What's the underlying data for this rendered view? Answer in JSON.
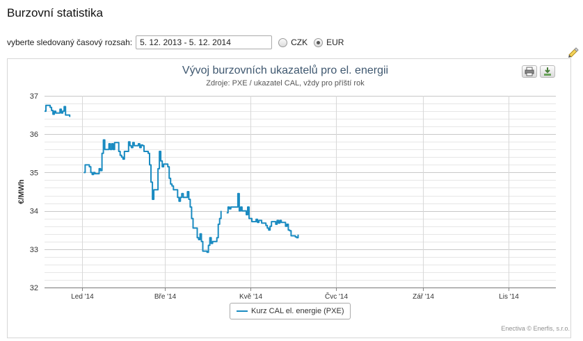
{
  "page": {
    "title": "Burzovní statistika"
  },
  "controls": {
    "range_label": "vyberte sledovaný časový rozsah:",
    "range_value": "5. 12. 2013 - 5. 12. 2014",
    "currency_options": [
      {
        "label": "CZK",
        "checked": false
      },
      {
        "label": "EUR",
        "checked": true
      }
    ]
  },
  "icons": {
    "side": "highlighter-icon",
    "print": "printer-icon",
    "export": "download-icon"
  },
  "colors": {
    "series": "#1a8bc1",
    "title": "#3e576f",
    "grid": "#d8d8d8"
  },
  "chart_data": {
    "type": "line",
    "title": "Vývoj burzovních ukazatelů pro el. energii",
    "subtitle": "Zdroje: PXE / ukazatel CAL, vždy pro příští rok",
    "ylabel": "€/MWh",
    "xlabel": "",
    "ylim": [
      32,
      37
    ],
    "yticks": [
      32,
      33,
      34,
      35,
      36,
      37
    ],
    "xlim": [
      "2013-12-05",
      "2014-12-05"
    ],
    "xticks": [
      {
        "date": "2014-01-01",
        "label": "Led '14"
      },
      {
        "date": "2014-03-01",
        "label": "Bře '14"
      },
      {
        "date": "2014-05-01",
        "label": "Kvě '14"
      },
      {
        "date": "2014-07-01",
        "label": "Čvc '14"
      },
      {
        "date": "2014-09-01",
        "label": "Zář '14"
      },
      {
        "date": "2014-11-01",
        "label": "Lis '14"
      }
    ],
    "grid": true,
    "legend_position": "bottom-center",
    "credits": "Enectiva © Enerfis, s.r.o.",
    "series": [
      {
        "name": "Kurz CAL el. energie (PXE)",
        "segments": [
          [
            [
              "2013-12-05",
              36.6
            ],
            [
              "2013-12-06",
              36.75
            ],
            [
              "2013-12-09",
              36.7
            ],
            [
              "2013-12-10",
              36.62
            ],
            [
              "2013-12-11",
              36.52
            ],
            [
              "2013-12-12",
              36.6
            ],
            [
              "2013-12-13",
              36.55
            ],
            [
              "2013-12-16",
              36.65
            ],
            [
              "2013-12-17",
              36.55
            ],
            [
              "2013-12-18",
              36.6
            ],
            [
              "2013-12-19",
              36.72
            ],
            [
              "2013-12-20",
              36.5
            ],
            [
              "2013-12-23",
              36.45
            ]
          ],
          [
            [
              "2014-01-02",
              35.0
            ],
            [
              "2014-01-03",
              35.2
            ],
            [
              "2014-01-06",
              35.15
            ],
            [
              "2014-01-07",
              35.0
            ],
            [
              "2014-01-08",
              34.95
            ],
            [
              "2014-01-09",
              35.0
            ],
            [
              "2014-01-10",
              34.97
            ],
            [
              "2014-01-13",
              35.1
            ],
            [
              "2014-01-14",
              35.05
            ],
            [
              "2014-01-15",
              35.5
            ],
            [
              "2014-01-16",
              35.85
            ],
            [
              "2014-01-17",
              35.6
            ],
            [
              "2014-01-20",
              35.75
            ],
            [
              "2014-01-21",
              35.6
            ],
            [
              "2014-01-22",
              35.75
            ],
            [
              "2014-01-23",
              35.6
            ],
            [
              "2014-01-24",
              35.78
            ],
            [
              "2014-01-27",
              35.55
            ],
            [
              "2014-01-28",
              35.45
            ],
            [
              "2014-01-29",
              35.4
            ],
            [
              "2014-01-30",
              35.35
            ],
            [
              "2014-01-31",
              35.55
            ],
            [
              "2014-02-03",
              35.8
            ],
            [
              "2014-02-04",
              35.7
            ],
            [
              "2014-02-05",
              35.65
            ],
            [
              "2014-02-06",
              35.78
            ],
            [
              "2014-02-07",
              35.7
            ],
            [
              "2014-02-10",
              35.75
            ],
            [
              "2014-02-11",
              35.65
            ],
            [
              "2014-02-12",
              35.72
            ],
            [
              "2014-02-13",
              35.7
            ],
            [
              "2014-02-14",
              35.55
            ],
            [
              "2014-02-17",
              35.5
            ],
            [
              "2014-02-18",
              35.2
            ],
            [
              "2014-02-19",
              34.75
            ],
            [
              "2014-02-20",
              34.3
            ],
            [
              "2014-02-21",
              34.55
            ],
            [
              "2014-02-24",
              35.1
            ],
            [
              "2014-02-25",
              35.55
            ],
            [
              "2014-02-26",
              35.3
            ],
            [
              "2014-02-27",
              35.15
            ],
            [
              "2014-02-28",
              35.22
            ],
            [
              "2014-03-03",
              35.15
            ],
            [
              "2014-03-04",
              34.85
            ],
            [
              "2014-03-05",
              34.7
            ],
            [
              "2014-03-06",
              34.65
            ],
            [
              "2014-03-07",
              34.55
            ],
            [
              "2014-03-10",
              34.35
            ],
            [
              "2014-03-11",
              34.25
            ],
            [
              "2014-03-12",
              34.35
            ],
            [
              "2014-03-13",
              34.45
            ],
            [
              "2014-03-14",
              34.35
            ],
            [
              "2014-03-17",
              34.5
            ],
            [
              "2014-03-18",
              34.3
            ],
            [
              "2014-03-19",
              34.1
            ],
            [
              "2014-03-20",
              33.8
            ],
            [
              "2014-03-21",
              33.55
            ],
            [
              "2014-03-24",
              33.3
            ],
            [
              "2014-03-25",
              33.25
            ],
            [
              "2014-03-26",
              33.4
            ],
            [
              "2014-03-27",
              33.2
            ],
            [
              "2014-03-28",
              32.95
            ],
            [
              "2014-03-31",
              32.92
            ],
            [
              "2014-04-01",
              33.1
            ],
            [
              "2014-04-02",
              33.3
            ],
            [
              "2014-04-03",
              33.15
            ],
            [
              "2014-04-04",
              33.2
            ],
            [
              "2014-04-07",
              33.3
            ],
            [
              "2014-04-08",
              33.65
            ],
            [
              "2014-04-09",
              33.8
            ],
            [
              "2014-04-10",
              34.0
            ]
          ],
          [
            [
              "2014-04-14",
              33.95
            ],
            [
              "2014-04-15",
              34.1
            ],
            [
              "2014-04-16",
              34.05
            ],
            [
              "2014-04-17",
              34.1
            ],
            [
              "2014-04-22",
              34.45
            ],
            [
              "2014-04-23",
              34.0
            ],
            [
              "2014-04-24",
              34.1
            ],
            [
              "2014-04-25",
              34.0
            ],
            [
              "2014-04-28",
              33.9
            ],
            [
              "2014-04-29",
              34.1
            ],
            [
              "2014-04-30",
              33.8
            ],
            [
              "2014-05-02",
              33.72
            ],
            [
              "2014-05-05",
              33.78
            ],
            [
              "2014-05-06",
              33.7
            ],
            [
              "2014-05-07",
              33.75
            ],
            [
              "2014-05-09",
              33.68
            ],
            [
              "2014-05-12",
              33.62
            ],
            [
              "2014-05-13",
              33.55
            ],
            [
              "2014-05-14",
              33.5
            ],
            [
              "2014-05-15",
              33.6
            ],
            [
              "2014-05-16",
              33.72
            ],
            [
              "2014-05-19",
              33.65
            ],
            [
              "2014-05-20",
              33.75
            ],
            [
              "2014-05-21",
              33.68
            ],
            [
              "2014-05-22",
              33.75
            ],
            [
              "2014-05-23",
              33.7
            ],
            [
              "2014-05-26",
              33.6
            ],
            [
              "2014-05-27",
              33.65
            ],
            [
              "2014-05-28",
              33.5
            ],
            [
              "2014-05-29",
              33.48
            ],
            [
              "2014-05-30",
              33.35
            ],
            [
              "2014-06-02",
              33.32
            ],
            [
              "2014-06-03",
              33.3
            ],
            [
              "2014-06-04",
              33.38
            ]
          ]
        ]
      }
    ]
  }
}
